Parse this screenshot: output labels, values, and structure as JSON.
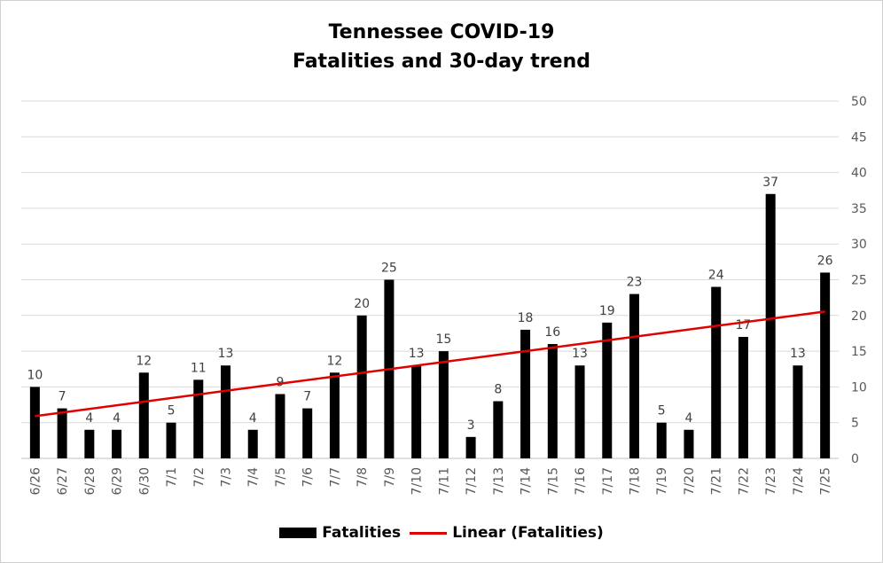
{
  "chart_data": {
    "type": "bar",
    "title_line1": "Tennessee COVID-19",
    "title_line2": "Fatalities and 30-day trend",
    "categories": [
      "6/26",
      "6/27",
      "6/28",
      "6/29",
      "6/30",
      "7/1",
      "7/2",
      "7/3",
      "7/4",
      "7/5",
      "7/6",
      "7/7",
      "7/8",
      "7/9",
      "7/10",
      "7/11",
      "7/12",
      "7/13",
      "7/14",
      "7/15",
      "7/16",
      "7/17",
      "7/18",
      "7/19",
      "7/20",
      "7/21",
      "7/22",
      "7/23",
      "7/24",
      "7/25"
    ],
    "series": [
      {
        "name": "Fatalities",
        "values": [
          10,
          7,
          4,
          4,
          12,
          5,
          11,
          13,
          4,
          9,
          7,
          12,
          20,
          25,
          13,
          15,
          3,
          8,
          18,
          16,
          13,
          19,
          23,
          5,
          4,
          24,
          17,
          37,
          13,
          26
        ],
        "color": "#000000"
      }
    ],
    "trendline": {
      "name": "Linear (Fatalities)",
      "color": "#e00000"
    },
    "y_ticks": [
      "0",
      "5",
      "10",
      "15",
      "20",
      "25",
      "30",
      "35",
      "40",
      "45",
      "50"
    ],
    "ylim": [
      0,
      50
    ],
    "y_axis_side": "right",
    "grid": true,
    "legend_position": "bottom"
  }
}
